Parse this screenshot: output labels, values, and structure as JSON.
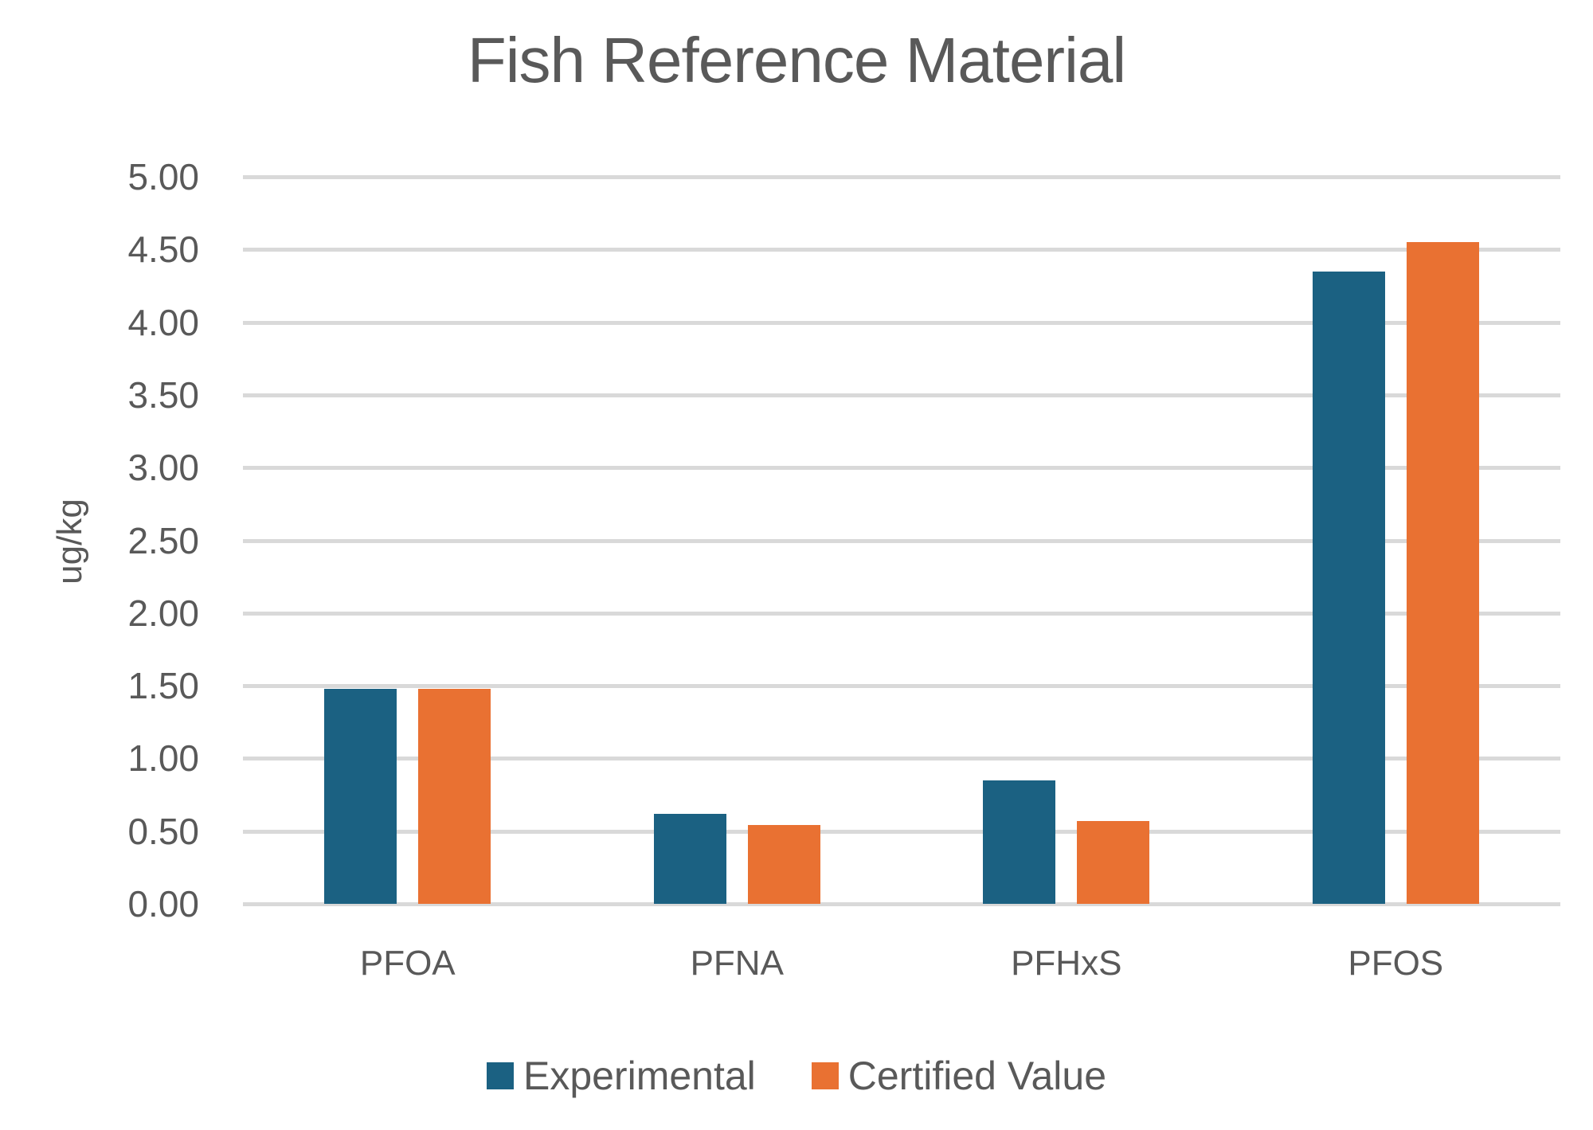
{
  "chart_data": {
    "type": "bar",
    "title": "Fish Reference Material",
    "xlabel": "",
    "ylabel": "ug/kg",
    "categories": [
      "PFOA",
      "PFNA",
      "PFHxS",
      "PFOS"
    ],
    "series": [
      {
        "name": "Experimental",
        "color": "#1b6182",
        "values": [
          1.48,
          0.62,
          0.85,
          4.35
        ]
      },
      {
        "name": "Certified Value",
        "color": "#e97132",
        "values": [
          1.48,
          0.54,
          0.57,
          4.55
        ]
      }
    ],
    "ylim": [
      0,
      5
    ],
    "yticks": [
      "0.00",
      "0.50",
      "1.00",
      "1.50",
      "2.00",
      "2.50",
      "3.00",
      "3.50",
      "4.00",
      "4.50",
      "5.00"
    ],
    "grid": true,
    "legend_position": "bottom"
  }
}
